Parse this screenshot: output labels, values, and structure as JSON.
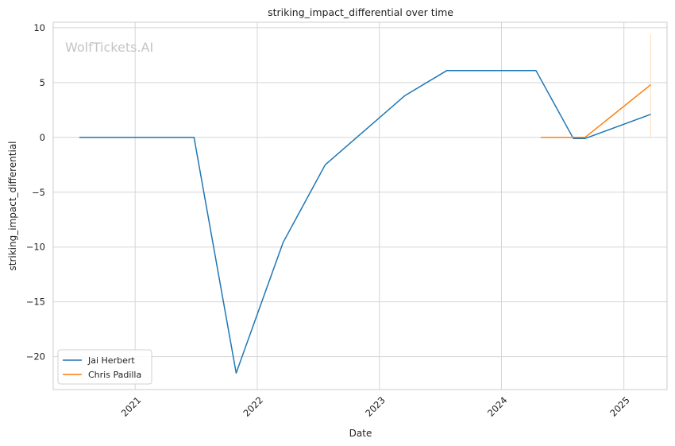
{
  "chart_data": {
    "type": "line",
    "title": "striking_impact_differential over time",
    "xlabel": "Date",
    "ylabel": "striking_impact_differential",
    "watermark": "WolfTickets.AI",
    "xlim": [
      "2020-05-01",
      "2025-05-10"
    ],
    "ylim": [
      -23.0,
      10.5
    ],
    "x_ticks": [
      "2021-01-01",
      "2022-01-01",
      "2023-01-01",
      "2024-01-01",
      "2025-01-01"
    ],
    "x_tick_labels": [
      "2021",
      "2022",
      "2023",
      "2024",
      "2025"
    ],
    "y_ticks": [
      10,
      5,
      0,
      -5,
      -10,
      -15,
      -20
    ],
    "y_tick_labels": [
      "10",
      "5",
      "0",
      "−5",
      "−10",
      "−15",
      "−20"
    ],
    "grid": true,
    "legend_position": "lower-left",
    "series": [
      {
        "name": "Jai Herbert",
        "color": "#1f77b4",
        "points": [
          [
            "2020-07-18",
            0
          ],
          [
            "2021-06-26",
            0
          ],
          [
            "2021-10-30",
            -21.5
          ],
          [
            "2022-03-19",
            -9.6
          ],
          [
            "2022-07-23",
            -2.5
          ],
          [
            "2023-03-18",
            3.8
          ],
          [
            "2023-07-22",
            6.1
          ],
          [
            "2024-04-13",
            6.1
          ],
          [
            "2024-08-03",
            -0.1
          ],
          [
            "2024-09-07",
            -0.1
          ],
          [
            "2025-03-22",
            2.1
          ]
        ]
      },
      {
        "name": "Chris Padilla",
        "color": "#ff7f0e",
        "points": [
          [
            "2024-04-27",
            0
          ],
          [
            "2024-09-07",
            0
          ],
          [
            "2025-03-22",
            4.8
          ]
        ]
      }
    ],
    "annotations": [
      {
        "type": "vertical-range",
        "x": "2025-03-22",
        "y_from": 0,
        "y_to": 9.4,
        "color": "#ffd9b8"
      }
    ]
  }
}
